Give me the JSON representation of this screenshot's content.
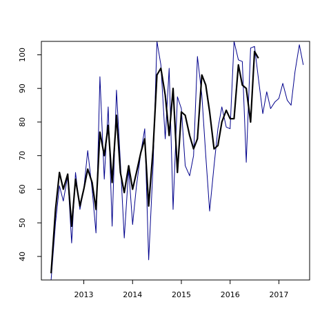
{
  "chart_data": {
    "type": "line",
    "title": "",
    "xlabel": "",
    "ylabel": "",
    "xlim": [
      2012.13,
      2017.63
    ],
    "ylim": [
      33,
      104
    ],
    "x_ticks": [
      {
        "value": 2013,
        "label": "2013"
      },
      {
        "value": 2014,
        "label": "2014"
      },
      {
        "value": 2015,
        "label": "2015"
      },
      {
        "value": 2016,
        "label": "2016"
      },
      {
        "value": 2017,
        "label": "2017"
      }
    ],
    "y_ticks": [
      {
        "value": 40,
        "label": "40"
      },
      {
        "value": 50,
        "label": "50"
      },
      {
        "value": 60,
        "label": "60"
      },
      {
        "value": 70,
        "label": "70"
      },
      {
        "value": 80,
        "label": "80"
      },
      {
        "value": 90,
        "label": "90"
      },
      {
        "value": 100,
        "label": "100"
      }
    ],
    "grid": false,
    "series": [
      {
        "color": "#00008B",
        "style": "thin",
        "points": [
          [
            2012.33,
            33
          ],
          [
            2012.42,
            50
          ],
          [
            2012.5,
            61
          ],
          [
            2012.58,
            56.5
          ],
          [
            2012.67,
            64
          ],
          [
            2012.75,
            44
          ],
          [
            2012.83,
            65
          ],
          [
            2012.92,
            54
          ],
          [
            2013.0,
            60
          ],
          [
            2013.08,
            71.5
          ],
          [
            2013.17,
            60
          ],
          [
            2013.25,
            47
          ],
          [
            2013.33,
            93.5
          ],
          [
            2013.42,
            63
          ],
          [
            2013.5,
            84.5
          ],
          [
            2013.58,
            49
          ],
          [
            2013.67,
            89.5
          ],
          [
            2013.75,
            68
          ],
          [
            2013.83,
            45.5
          ],
          [
            2013.92,
            66
          ],
          [
            2014.0,
            49.5
          ],
          [
            2014.08,
            61
          ],
          [
            2014.17,
            71
          ],
          [
            2014.25,
            78
          ],
          [
            2014.33,
            39
          ],
          [
            2014.42,
            67
          ],
          [
            2014.5,
            104
          ],
          [
            2014.58,
            97
          ],
          [
            2014.67,
            75
          ],
          [
            2014.75,
            96
          ],
          [
            2014.83,
            54
          ],
          [
            2014.92,
            87.5
          ],
          [
            2015.0,
            84
          ],
          [
            2015.08,
            67
          ],
          [
            2015.17,
            64
          ],
          [
            2015.25,
            70
          ],
          [
            2015.33,
            99.5
          ],
          [
            2015.42,
            88
          ],
          [
            2015.5,
            70
          ],
          [
            2015.58,
            53.5
          ],
          [
            2015.67,
            67
          ],
          [
            2015.75,
            78
          ],
          [
            2015.83,
            84.5
          ],
          [
            2015.92,
            78.5
          ],
          [
            2016.0,
            78
          ],
          [
            2016.08,
            104
          ],
          [
            2016.17,
            98.5
          ],
          [
            2016.25,
            98
          ],
          [
            2016.33,
            68
          ],
          [
            2016.42,
            102
          ],
          [
            2016.5,
            102.5
          ],
          [
            2016.58,
            93
          ],
          [
            2016.67,
            82.5
          ],
          [
            2016.75,
            89
          ],
          [
            2016.83,
            84
          ],
          [
            2016.92,
            86
          ],
          [
            2017.0,
            87
          ],
          [
            2017.08,
            91.5
          ],
          [
            2017.17,
            86.5
          ],
          [
            2017.25,
            85
          ],
          [
            2017.33,
            95
          ],
          [
            2017.42,
            103
          ],
          [
            2017.5,
            97
          ]
        ]
      },
      {
        "color": "#000000",
        "style": "thick",
        "points": [
          [
            2012.33,
            35
          ],
          [
            2012.42,
            54
          ],
          [
            2012.5,
            65
          ],
          [
            2012.58,
            60
          ],
          [
            2012.67,
            64.5
          ],
          [
            2012.75,
            49
          ],
          [
            2012.83,
            63
          ],
          [
            2012.92,
            55
          ],
          [
            2013.0,
            60
          ],
          [
            2013.08,
            66
          ],
          [
            2013.17,
            62
          ],
          [
            2013.25,
            54
          ],
          [
            2013.33,
            77
          ],
          [
            2013.42,
            70
          ],
          [
            2013.5,
            79
          ],
          [
            2013.58,
            62
          ],
          [
            2013.67,
            82
          ],
          [
            2013.75,
            65
          ],
          [
            2013.83,
            59
          ],
          [
            2013.92,
            67
          ],
          [
            2014.0,
            60
          ],
          [
            2014.08,
            65
          ],
          [
            2014.17,
            71
          ],
          [
            2014.25,
            75
          ],
          [
            2014.33,
            55
          ],
          [
            2014.42,
            72
          ],
          [
            2014.5,
            94
          ],
          [
            2014.58,
            96
          ],
          [
            2014.67,
            88
          ],
          [
            2014.75,
            76
          ],
          [
            2014.83,
            90
          ],
          [
            2014.92,
            65
          ],
          [
            2015.0,
            83
          ],
          [
            2015.08,
            82
          ],
          [
            2015.17,
            76
          ],
          [
            2015.25,
            72
          ],
          [
            2015.33,
            75
          ],
          [
            2015.42,
            94
          ],
          [
            2015.5,
            91
          ],
          [
            2015.58,
            83
          ],
          [
            2015.67,
            72
          ],
          [
            2015.75,
            73
          ],
          [
            2015.83,
            80
          ],
          [
            2015.92,
            83.5
          ],
          [
            2016.0,
            81
          ],
          [
            2016.08,
            81
          ],
          [
            2016.17,
            97
          ],
          [
            2016.25,
            91
          ],
          [
            2016.33,
            90
          ],
          [
            2016.42,
            80
          ],
          [
            2016.5,
            101
          ],
          [
            2016.58,
            99
          ]
        ]
      }
    ]
  }
}
